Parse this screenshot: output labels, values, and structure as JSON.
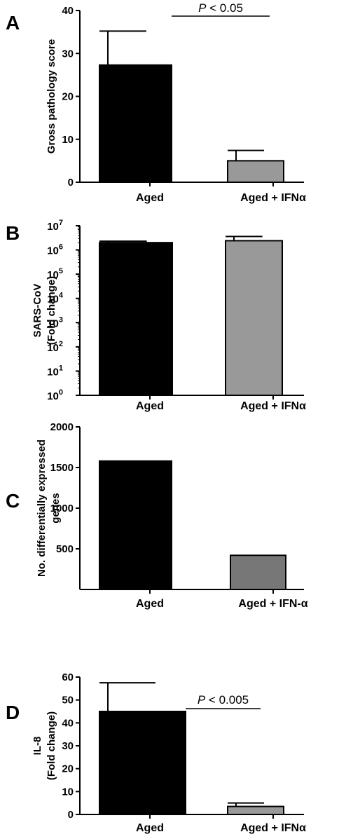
{
  "chart_data": [
    {
      "panel": "A",
      "type": "bar",
      "categories": [
        "Aged",
        "Aged + IFNα"
      ],
      "values": [
        27.3,
        5.0
      ],
      "errors": [
        7.9,
        2.4
      ],
      "colors": [
        "#000000",
        "#999999"
      ],
      "ylabel": "Gross pathology score",
      "ylim": [
        0,
        40
      ],
      "yticks": [
        0,
        10,
        20,
        30,
        40
      ],
      "yscale": "linear",
      "significance": {
        "italic": "P",
        "rest": " < 0.05"
      }
    },
    {
      "panel": "B",
      "type": "bar",
      "categories": [
        "Aged",
        "Aged + IFNα"
      ],
      "values": [
        2000000,
        2400000
      ],
      "errors_upper": [
        2300000,
        3600000
      ],
      "colors": [
        "#000000",
        "#999999"
      ],
      "ylabel_lines": [
        "SARS-CoV",
        "(Fold change)"
      ],
      "ylim": [
        1,
        10000000
      ],
      "yscale": "log",
      "ytick_exponents": [
        "0",
        "1",
        "2",
        "3",
        "4",
        "5",
        "6",
        "7"
      ],
      "ytick_base": "10"
    },
    {
      "panel": "C",
      "type": "bar",
      "categories": [
        "Aged",
        "Aged + IFN-α"
      ],
      "values": [
        1580,
        420
      ],
      "colors": [
        "#000000",
        "#777777"
      ],
      "ylabel_lines": [
        "No. differentially expressed",
        "genes"
      ],
      "ylim": [
        0,
        2000
      ],
      "yticks": [
        500,
        1000,
        1500,
        2000
      ],
      "yscale": "linear"
    },
    {
      "panel": "D",
      "type": "bar",
      "categories": [
        "Aged",
        "Aged + IFNα"
      ],
      "values": [
        45.0,
        3.5
      ],
      "errors": [
        12.5,
        1.5
      ],
      "colors": [
        "#000000",
        "#999999"
      ],
      "ylabel_lines": [
        "IL-8",
        "(Fold change)"
      ],
      "ylim": [
        0,
        60
      ],
      "yticks": [
        0,
        10,
        20,
        30,
        40,
        50,
        60
      ],
      "yscale": "linear",
      "significance": {
        "italic": "P",
        "rest": " < 0.005"
      }
    }
  ]
}
